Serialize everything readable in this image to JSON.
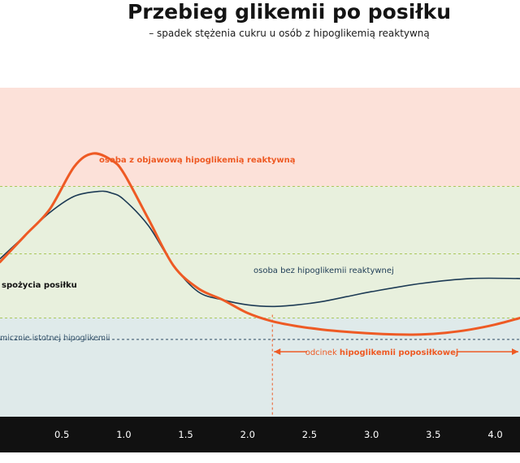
{
  "chart_data": {
    "type": "line",
    "title": "Przebieg glikemii po posiłku",
    "subtitle": "– spadek stężenia cukru u osób z hipoglikemią reaktywną",
    "x_ticks": [
      "0.5",
      "1.0",
      "1.5",
      "2.0",
      "2.5",
      "3.0",
      "3.5",
      "4.0"
    ],
    "xlim": [
      0.0,
      4.2
    ],
    "ylim": [
      0,
      100
    ],
    "zones": [
      {
        "name": "high",
        "from": 70,
        "to": 100,
        "color": "#fce1d9"
      },
      {
        "name": "normal",
        "from": 30,
        "to": 70,
        "color": "#e8f0dd"
      },
      {
        "name": "low",
        "from": 0,
        "to": 30,
        "color": "#dfeaea"
      }
    ],
    "dashed_lines": [
      {
        "y": 70,
        "color": "#a9c85c"
      },
      {
        "y": 49.5,
        "color": "#a9c85c"
      },
      {
        "y": 30,
        "color": "#a9c85c"
      },
      {
        "y": 23.5,
        "color": "#2f4a63"
      }
    ],
    "series": [
      {
        "name": "osoba bez hipoglikemii reaktywnej",
        "color": "#1d3b55",
        "x": [
          0.0,
          0.2,
          0.4,
          0.6,
          0.8,
          0.9,
          1.0,
          1.2,
          1.4,
          1.6,
          1.8,
          2.0,
          2.2,
          2.4,
          2.6,
          2.8,
          3.0,
          3.4,
          3.8,
          4.2
        ],
        "y": [
          48,
          55,
          62,
          67,
          68.5,
          68,
          66,
          58,
          46,
          38,
          35.5,
          34,
          33.5,
          34,
          35,
          36.5,
          38,
          40.5,
          42,
          42
        ]
      },
      {
        "name": "osoba z objawową hipoglikemią reaktywną",
        "color": "#ee5a24",
        "x": [
          0.0,
          0.2,
          0.4,
          0.6,
          0.75,
          0.9,
          1.0,
          1.2,
          1.4,
          1.6,
          1.8,
          2.0,
          2.2,
          2.4,
          2.6,
          2.8,
          3.0,
          3.2,
          3.4,
          3.6,
          3.8,
          4.0,
          4.2
        ],
        "y": [
          47,
          55,
          63,
          76,
          80,
          78,
          74,
          60,
          46,
          39,
          35.5,
          31.5,
          29,
          27.5,
          26.5,
          25.8,
          25.3,
          25,
          25,
          25.5,
          26.5,
          28,
          30
        ]
      }
    ],
    "annotations": {
      "orange_curve_label": "osoba z objawową hipoglikemią reaktywną",
      "navy_curve_label": "osoba bez hipoglikemii reaktywnej",
      "meal_label": "spożycia posiłku",
      "hypo_threshold_label": "micznie istotnej hipoglikemii",
      "segment_label_prefix": "odcinek ",
      "segment_label_bold": "hipoglikemii poposiłkowej"
    },
    "segment": {
      "x_start": 2.2,
      "x_end": 4.2
    }
  }
}
